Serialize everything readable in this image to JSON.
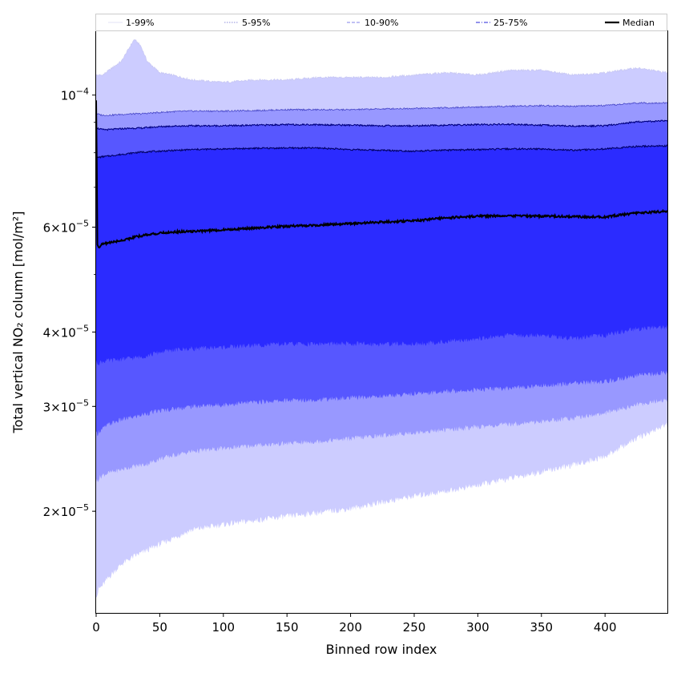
{
  "chart_data": {
    "type": "area",
    "xlabel": "Binned row index",
    "ylabel": "Total vertical NO₂ column [mol/m²]",
    "xlim": [
      0,
      449
    ],
    "ylim": [
      1.35e-05,
      0.000128
    ],
    "yscale": "log",
    "grid": false,
    "legend_position": "top",
    "x_ticks": [
      0,
      50,
      100,
      150,
      200,
      250,
      300,
      350,
      400
    ],
    "x_tick_labels": [
      "0",
      "50",
      "100",
      "150",
      "200",
      "250",
      "300",
      "350",
      "400"
    ],
    "y_ticks": [
      {
        "value": 0.0001,
        "mantissa": "",
        "exp": "−4"
      },
      {
        "value": 6e-05,
        "mantissa": "6",
        "exp": "−5"
      },
      {
        "value": 4e-05,
        "mantissa": "4",
        "exp": "−5"
      },
      {
        "value": 3e-05,
        "mantissa": "3",
        "exp": "−5"
      },
      {
        "value": 2e-05,
        "mantissa": "2",
        "exp": "−5"
      }
    ],
    "y_minor_ticks": [
      2e-05,
      3e-05,
      4e-05,
      5e-05,
      6e-05,
      7e-05,
      8e-05,
      9e-05
    ],
    "x": [
      0,
      1,
      2,
      5,
      10,
      20,
      30,
      35,
      40,
      50,
      60,
      75,
      100,
      125,
      150,
      175,
      200,
      225,
      250,
      275,
      300,
      325,
      350,
      375,
      400,
      425,
      449
    ],
    "bands": [
      {
        "name": "1-99%",
        "fill": "#ccccff",
        "line_color": "#c8c8f4",
        "lower": [
          1.45e-05,
          1.45e-05,
          1.48e-05,
          1.5e-05,
          1.55e-05,
          1.63e-05,
          1.68e-05,
          1.7e-05,
          1.72e-05,
          1.76e-05,
          1.8e-05,
          1.86e-05,
          1.9e-05,
          1.93e-05,
          1.96e-05,
          1.99e-05,
          2.02e-05,
          2.07e-05,
          2.12e-05,
          2.16e-05,
          2.21e-05,
          2.27e-05,
          2.33e-05,
          2.39e-05,
          2.47e-05,
          2.65e-05,
          2.8e-05
        ],
        "upper": [
          0.000108,
          0.000108,
          0.000108,
          0.000108,
          0.00011,
          0.000114,
          0.000124,
          0.000121,
          0.000114,
          0.000109,
          0.000108,
          0.000106,
          0.000105,
          0.000106,
          0.000106,
          0.000107,
          0.000107,
          0.000107,
          0.000108,
          0.000109,
          0.000108,
          0.00011,
          0.00011,
          0.000108,
          0.000109,
          0.000111,
          0.000109
        ]
      },
      {
        "name": "5-95%",
        "fill": "#9898ff",
        "line_color": "#4848c8",
        "lower": [
          2.25e-05,
          2.25e-05,
          2.27e-05,
          2.3e-05,
          2.32e-05,
          2.35e-05,
          2.38e-05,
          2.39e-05,
          2.4e-05,
          2.45e-05,
          2.48e-05,
          2.52e-05,
          2.55e-05,
          2.58e-05,
          2.6e-05,
          2.62e-05,
          2.65e-05,
          2.68e-05,
          2.71e-05,
          2.74e-05,
          2.77e-05,
          2.8e-05,
          2.83e-05,
          2.87e-05,
          2.92e-05,
          3.02e-05,
          3.08e-05
        ],
        "upper": [
          9.3e-05,
          9.3e-05,
          9.28e-05,
          9.25e-05,
          9.25e-05,
          9.28e-05,
          9.3e-05,
          9.3e-05,
          9.32e-05,
          9.35e-05,
          9.38e-05,
          9.4e-05,
          9.4e-05,
          9.42e-05,
          9.45e-05,
          9.45e-05,
          9.45e-05,
          9.48e-05,
          9.5e-05,
          9.52e-05,
          9.55e-05,
          9.58e-05,
          9.6e-05,
          9.58e-05,
          9.6e-05,
          9.7e-05,
          9.7e-05
        ]
      },
      {
        "name": "10-90%",
        "fill": "#5757ff",
        "line_color": "#000080",
        "lower": [
          2.7e-05,
          2.7e-05,
          2.72e-05,
          2.75e-05,
          2.8e-05,
          2.85e-05,
          2.88e-05,
          2.9e-05,
          2.92e-05,
          2.95e-05,
          2.97e-05,
          3e-05,
          3.02e-05,
          3.05e-05,
          3.07e-05,
          3.08e-05,
          3.1e-05,
          3.12e-05,
          3.15e-05,
          3.18e-05,
          3.2e-05,
          3.22e-05,
          3.25e-05,
          3.28e-05,
          3.3e-05,
          3.38e-05,
          3.42e-05
        ],
        "upper": [
          8.8e-05,
          8.8e-05,
          8.78e-05,
          8.75e-05,
          8.75e-05,
          8.78e-05,
          8.8e-05,
          8.8e-05,
          8.82e-05,
          8.85e-05,
          8.87e-05,
          8.88e-05,
          8.88e-05,
          8.9e-05,
          8.92e-05,
          8.92e-05,
          8.9e-05,
          8.88e-05,
          8.88e-05,
          8.9e-05,
          8.92e-05,
          8.93e-05,
          8.9e-05,
          8.87e-05,
          8.88e-05,
          9.02e-05,
          9.05e-05
        ]
      },
      {
        "name": "25-75%",
        "fill": "#2b2bff",
        "line_color": "#000066",
        "lower": [
          3.55e-05,
          3.55e-05,
          3.55e-05,
          3.57e-05,
          3.58e-05,
          3.6e-05,
          3.62e-05,
          3.63e-05,
          3.65e-05,
          3.7e-05,
          3.73e-05,
          3.75e-05,
          3.77e-05,
          3.8e-05,
          3.82e-05,
          3.82e-05,
          3.82e-05,
          3.82e-05,
          3.82e-05,
          3.85e-05,
          3.9e-05,
          3.95e-05,
          3.95e-05,
          3.9e-05,
          3.95e-05,
          4.05e-05,
          4.08e-05
        ],
        "upper": [
          7.85e-05,
          7.85e-05,
          7.86e-05,
          7.88e-05,
          7.9e-05,
          7.95e-05,
          8e-05,
          8.02e-05,
          8.03e-05,
          8.05e-05,
          8.07e-05,
          8.1e-05,
          8.12e-05,
          8.14e-05,
          8.15e-05,
          8.15e-05,
          8.1e-05,
          8.08e-05,
          8.05e-05,
          8.08e-05,
          8.1e-05,
          8.12e-05,
          8.12e-05,
          8.08e-05,
          8.12e-05,
          8.2e-05,
          8.22e-05
        ]
      }
    ],
    "median": {
      "name": "Median",
      "color": "#000000",
      "values": [
        9.8e-05,
        5.6e-05,
        5.55e-05,
        5.62e-05,
        5.65e-05,
        5.7e-05,
        5.77e-05,
        5.8e-05,
        5.83e-05,
        5.86e-05,
        5.89e-05,
        5.9e-05,
        5.94e-05,
        5.98e-05,
        6.02e-05,
        6.05e-05,
        6.08e-05,
        6.12e-05,
        6.15e-05,
        6.22e-05,
        6.26e-05,
        6.27e-05,
        6.26e-05,
        6.25e-05,
        6.24e-05,
        6.34e-05,
        6.38e-05
      ]
    },
    "legend": [
      {
        "label": "1-99%",
        "color": "#d6d6f0",
        "style": "solid",
        "width": 0.8
      },
      {
        "label": "5-95%",
        "color": "#6a6ad0",
        "style": "dotted",
        "width": 0.8
      },
      {
        "label": "10-90%",
        "color": "#8080e8",
        "style": "dashed",
        "width": 1.1
      },
      {
        "label": "25-75%",
        "color": "#5050e0",
        "style": "dashdot",
        "width": 1.3
      },
      {
        "label": "Median",
        "color": "#000000",
        "style": "solid",
        "width": 2.2
      }
    ]
  }
}
